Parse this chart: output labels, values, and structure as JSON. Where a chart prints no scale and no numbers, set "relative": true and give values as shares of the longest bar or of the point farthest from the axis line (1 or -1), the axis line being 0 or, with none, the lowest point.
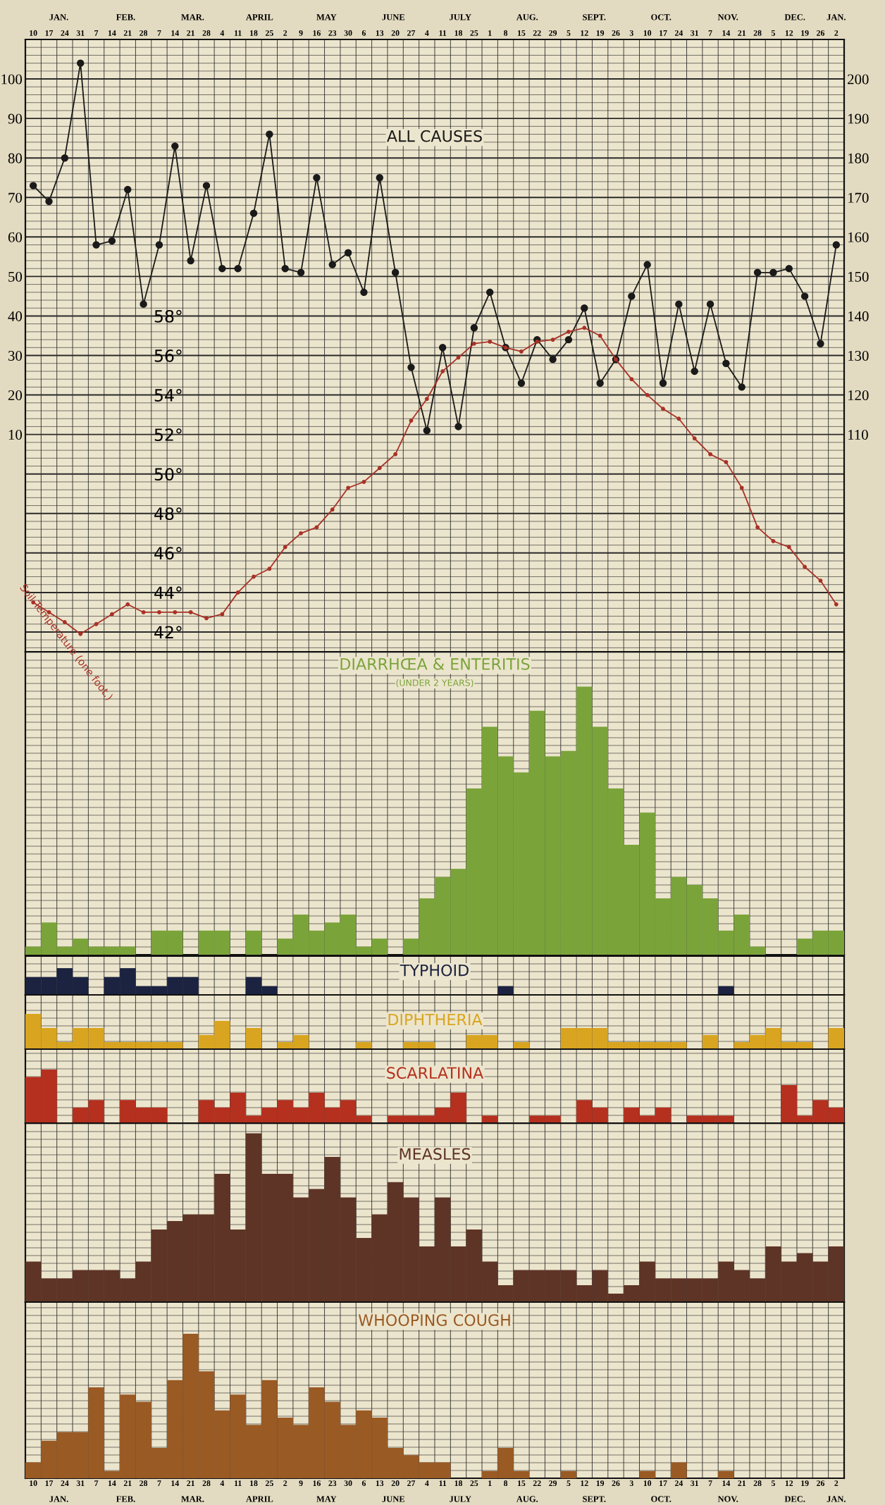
{
  "chart_data": [
    {
      "type": "line",
      "title": "ALL CAUSES",
      "marker": "circle",
      "grid": true,
      "categories": [
        "10",
        "17",
        "24",
        "31",
        "7",
        "14",
        "21",
        "28",
        "7",
        "14",
        "21",
        "28",
        "4",
        "11",
        "18",
        "25",
        "2",
        "9",
        "16",
        "23",
        "30",
        "6",
        "13",
        "20",
        "27",
        "4",
        "11",
        "18",
        "25",
        "1",
        "8",
        "15",
        "22",
        "29",
        "5",
        "12",
        "19",
        "26",
        "3",
        "10",
        "17",
        "24",
        "31",
        "7",
        "14",
        "21",
        "28",
        "5",
        "12",
        "19",
        "26",
        "2"
      ],
      "annotations": [
        "JAN.",
        "FEB.",
        "MAR.",
        "APRIL",
        "MAY",
        "JUNE",
        "JULY",
        "AUG.",
        "SEPT.",
        "OCT.",
        "NOV.",
        "DEC.",
        "JAN."
      ],
      "ylim": [
        -45,
        110
      ],
      "yticks": [
        10,
        20,
        30,
        40,
        50,
        60,
        70,
        80,
        90,
        100
      ],
      "y2lim": [
        55,
        210
      ],
      "y2ticks": [
        110,
        120,
        130,
        140,
        150,
        160,
        170,
        180,
        190,
        200
      ],
      "y3lim": [
        41,
        72
      ],
      "y3ticks": [
        {
          "value": 42,
          "label": "42°"
        },
        {
          "value": 44,
          "label": "44°"
        },
        {
          "value": 46,
          "label": "46°"
        },
        {
          "value": 48,
          "label": "48°"
        },
        {
          "value": 50,
          "label": "50°"
        },
        {
          "value": 52,
          "label": "52°"
        },
        {
          "value": 54,
          "label": "54°"
        },
        {
          "value": 56,
          "label": "56°"
        },
        {
          "value": 58,
          "label": "58°"
        }
      ],
      "series": [
        {
          "color": "#1a1a1a",
          "axis": "y2",
          "values": [
            173,
            169,
            180,
            204,
            158,
            159,
            172,
            143,
            158,
            183,
            154,
            173,
            152,
            152,
            166,
            186,
            152,
            151,
            175,
            153,
            156,
            146,
            175,
            151,
            127,
            111,
            132,
            112,
            137,
            146,
            132,
            123,
            134,
            129,
            134,
            142,
            123,
            129,
            145,
            153,
            123,
            143,
            126,
            143,
            128,
            122,
            151,
            151,
            152,
            145,
            133,
            158
          ]
        },
        {
          "name": "Soil Temperature (one foot.)",
          "color": "#a83228",
          "axis": "y3",
          "values": [
            43.5,
            43.0,
            42.5,
            41.9,
            42.4,
            42.9,
            43.4,
            43.0,
            43.0,
            43.0,
            43.0,
            42.7,
            42.9,
            44.0,
            44.8,
            45.2,
            46.3,
            47.0,
            47.3,
            48.2,
            49.3,
            49.6,
            50.3,
            51.0,
            52.7,
            53.8,
            55.2,
            55.9,
            56.6,
            56.7,
            56.4,
            56.2,
            56.7,
            56.8,
            57.2,
            57.4,
            57.0,
            55.8,
            54.8,
            54.0,
            53.3,
            52.8,
            51.8,
            51.0,
            50.6,
            49.3,
            47.3,
            46.6,
            46.3,
            45.3,
            44.6,
            43.4
          ]
        }
      ]
    },
    {
      "type": "bar",
      "title": "DIARRHŒA & ENTERITIS",
      "subtitle": "(UNDER 2 YEARS)",
      "relative": true,
      "grid": true,
      "tick_labels": false,
      "color": "#7aa43a",
      "categories": [
        "10",
        "17",
        "24",
        "31",
        "7",
        "14",
        "21",
        "28",
        "7",
        "14",
        "21",
        "28",
        "4",
        "11",
        "18",
        "25",
        "2",
        "9",
        "16",
        "23",
        "30",
        "6",
        "13",
        "20",
        "27",
        "4",
        "11",
        "18",
        "25",
        "1",
        "8",
        "15",
        "22",
        "29",
        "5",
        "12",
        "19",
        "26",
        "3",
        "10",
        "17",
        "24",
        "31",
        "7",
        "14",
        "21",
        "28",
        "5",
        "12",
        "19",
        "26",
        "2"
      ],
      "values": [
        0.03,
        0.12,
        0.03,
        0.06,
        0.03,
        0.03,
        0.03,
        0,
        0.09,
        0.09,
        0,
        0.09,
        0.09,
        0,
        0.09,
        0,
        0.06,
        0.15,
        0.09,
        0.12,
        0.15,
        0.03,
        0.06,
        0,
        0.06,
        0.21,
        0.29,
        0.32,
        0.62,
        0.85,
        0.74,
        0.68,
        0.91,
        0.74,
        0.76,
        1,
        0.85,
        0.62,
        0.41,
        0.53,
        0.21,
        0.29,
        0.26,
        0.21,
        0.09,
        0.15,
        0.03,
        0,
        0,
        0.06,
        0.09,
        0.09
      ]
    },
    {
      "type": "bar",
      "title": "TYPHOID",
      "relative": true,
      "grid": true,
      "tick_labels": false,
      "color": "#1c2340",
      "categories": [
        "10",
        "17",
        "24",
        "31",
        "7",
        "14",
        "21",
        "28",
        "7",
        "14",
        "21",
        "28",
        "4",
        "11",
        "18",
        "25",
        "2",
        "9",
        "16",
        "23",
        "30",
        "6",
        "13",
        "20",
        "27",
        "4",
        "11",
        "18",
        "25",
        "1",
        "8",
        "15",
        "22",
        "29",
        "5",
        "12",
        "19",
        "26",
        "3",
        "10",
        "17",
        "24",
        "31",
        "7",
        "14",
        "21",
        "28",
        "5",
        "12",
        "19",
        "26",
        "2"
      ],
      "values": [
        0.67,
        0.67,
        1,
        0.67,
        0,
        0.67,
        1,
        0.33,
        0.33,
        0.67,
        0.67,
        0,
        0,
        0,
        0.67,
        0.33,
        0,
        0,
        0,
        0,
        0,
        0,
        0,
        0,
        0,
        0,
        0,
        0,
        0,
        0,
        0.33,
        0,
        0,
        0,
        0,
        0,
        0,
        0,
        0,
        0,
        0,
        0,
        0,
        0,
        0.33,
        0,
        0,
        0,
        0,
        0,
        0,
        0
      ]
    },
    {
      "type": "bar",
      "title": "DIPHTHERIA",
      "relative": true,
      "grid": true,
      "tick_labels": false,
      "color": "#d9a520",
      "categories": [
        "10",
        "17",
        "24",
        "31",
        "7",
        "14",
        "21",
        "28",
        "7",
        "14",
        "21",
        "28",
        "4",
        "11",
        "18",
        "25",
        "2",
        "9",
        "16",
        "23",
        "30",
        "6",
        "13",
        "20",
        "27",
        "4",
        "11",
        "18",
        "25",
        "1",
        "8",
        "15",
        "22",
        "29",
        "5",
        "12",
        "19",
        "26",
        "3",
        "10",
        "17",
        "24",
        "31",
        "7",
        "14",
        "21",
        "28",
        "5",
        "12",
        "19",
        "26",
        "2"
      ],
      "values": [
        1,
        0.6,
        0.2,
        0.6,
        0.6,
        0.2,
        0.2,
        0.2,
        0.2,
        0.2,
        0,
        0.4,
        0.8,
        0,
        0.6,
        0,
        0.2,
        0.4,
        0,
        0,
        0,
        0.2,
        0,
        0,
        0.2,
        0.2,
        0,
        0,
        0.4,
        0.4,
        0,
        0.2,
        0,
        0,
        0.6,
        0.6,
        0.6,
        0.2,
        0.2,
        0.2,
        0.2,
        0.2,
        0,
        0.4,
        0,
        0.2,
        0.4,
        0.6,
        0.2,
        0.2,
        0,
        0.6
      ]
    },
    {
      "type": "bar",
      "title": "SCARLATINA",
      "relative": true,
      "grid": true,
      "tick_labels": false,
      "color": "#b5301e",
      "categories": [
        "10",
        "17",
        "24",
        "31",
        "7",
        "14",
        "21",
        "28",
        "7",
        "14",
        "21",
        "28",
        "4",
        "11",
        "18",
        "25",
        "2",
        "9",
        "16",
        "23",
        "30",
        "6",
        "13",
        "20",
        "27",
        "4",
        "11",
        "18",
        "25",
        "1",
        "8",
        "15",
        "22",
        "29",
        "5",
        "12",
        "19",
        "26",
        "3",
        "10",
        "17",
        "24",
        "31",
        "7",
        "14",
        "21",
        "28",
        "5",
        "12",
        "19",
        "26",
        "2"
      ],
      "values": [
        0.86,
        1,
        0,
        0.29,
        0.43,
        0,
        0.43,
        0.29,
        0.29,
        0,
        0,
        0.43,
        0.29,
        0.57,
        0.14,
        0.29,
        0.43,
        0.29,
        0.57,
        0.29,
        0.43,
        0.14,
        0,
        0.14,
        0.14,
        0.14,
        0.29,
        0.57,
        0,
        0.14,
        0,
        0,
        0.14,
        0.14,
        0,
        0.43,
        0.29,
        0,
        0.29,
        0.14,
        0.29,
        0,
        0.14,
        0.14,
        0.14,
        0,
        0,
        0,
        0.71,
        0.14,
        0.43,
        0.29
      ]
    },
    {
      "type": "bar",
      "title": "MEASLES",
      "relative": true,
      "grid": true,
      "tick_labels": false,
      "color": "#5e3426",
      "categories": [
        "10",
        "17",
        "24",
        "31",
        "7",
        "14",
        "21",
        "28",
        "7",
        "14",
        "21",
        "28",
        "4",
        "11",
        "18",
        "25",
        "2",
        "9",
        "16",
        "23",
        "30",
        "6",
        "13",
        "20",
        "27",
        "4",
        "11",
        "18",
        "25",
        "1",
        "8",
        "15",
        "22",
        "29",
        "5",
        "12",
        "19",
        "26",
        "3",
        "10",
        "17",
        "24",
        "31",
        "7",
        "14",
        "21",
        "28",
        "5",
        "12",
        "19",
        "26",
        "2"
      ],
      "values": [
        0.24,
        0.14,
        0.14,
        0.19,
        0.19,
        0.19,
        0.14,
        0.24,
        0.43,
        0.48,
        0.52,
        0.52,
        0.76,
        0.43,
        1,
        0.76,
        0.76,
        0.62,
        0.67,
        0.86,
        0.62,
        0.38,
        0.52,
        0.71,
        0.62,
        0.33,
        0.62,
        0.33,
        0.43,
        0.24,
        0.1,
        0.19,
        0.19,
        0.19,
        0.19,
        0.1,
        0.19,
        0.05,
        0.1,
        0.24,
        0.14,
        0.14,
        0.14,
        0.14,
        0.24,
        0.19,
        0.14,
        0.33,
        0.24,
        0.29,
        0.24,
        0.33
      ]
    },
    {
      "type": "bar",
      "title": "WHOOPING COUGH",
      "relative": true,
      "grid": true,
      "tick_labels": "x",
      "color": "#9a5a24",
      "categories": [
        "10",
        "17",
        "24",
        "31",
        "7",
        "14",
        "21",
        "28",
        "7",
        "14",
        "21",
        "28",
        "4",
        "11",
        "18",
        "25",
        "2",
        "9",
        "16",
        "23",
        "30",
        "6",
        "13",
        "20",
        "27",
        "4",
        "11",
        "18",
        "25",
        "1",
        "8",
        "15",
        "22",
        "29",
        "5",
        "12",
        "19",
        "26",
        "3",
        "10",
        "17",
        "24",
        "31",
        "7",
        "14",
        "21",
        "28",
        "5",
        "12",
        "19",
        "26",
        "2"
      ],
      "annotations": [
        "JAN.",
        "FEB.",
        "MAR.",
        "APRIL",
        "MAY",
        "JUNE",
        "JULY",
        "AUG.",
        "SEPT.",
        "OCT.",
        "NOV.",
        "DEC.",
        "JAN."
      ],
      "values": [
        0.11,
        0.26,
        0.32,
        0.32,
        0.63,
        0.05,
        0.58,
        0.53,
        0.21,
        0.68,
        1,
        0.74,
        0.47,
        0.58,
        0.37,
        0.68,
        0.42,
        0.37,
        0.63,
        0.53,
        0.37,
        0.47,
        0.42,
        0.21,
        0.16,
        0.11,
        0.11,
        0,
        0,
        0.05,
        0.21,
        0.05,
        0,
        0,
        0.05,
        0,
        0,
        0,
        0,
        0.05,
        0,
        0.11,
        0,
        0,
        0.05,
        0,
        0,
        0,
        0,
        0,
        0,
        0
      ]
    }
  ]
}
